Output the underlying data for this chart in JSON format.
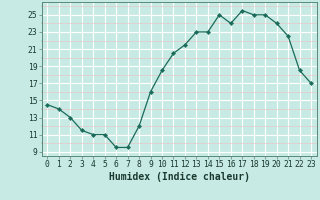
{
  "x": [
    0,
    1,
    2,
    3,
    4,
    5,
    6,
    7,
    8,
    9,
    10,
    11,
    12,
    13,
    14,
    15,
    16,
    17,
    18,
    19,
    20,
    21,
    22,
    23
  ],
  "y": [
    14.5,
    14.0,
    13.0,
    11.5,
    11.0,
    11.0,
    9.5,
    9.5,
    12.0,
    16.0,
    18.5,
    20.5,
    21.5,
    23.0,
    23.0,
    25.0,
    24.0,
    25.5,
    25.0,
    25.0,
    24.0,
    22.5,
    18.5,
    17.0
  ],
  "xlabel": "Humidex (Indice chaleur)",
  "ylim": [
    8.5,
    26.5
  ],
  "xlim": [
    -0.5,
    23.5
  ],
  "yticks": [
    9,
    11,
    13,
    15,
    17,
    19,
    21,
    23,
    25
  ],
  "xticks": [
    0,
    1,
    2,
    3,
    4,
    5,
    6,
    7,
    8,
    9,
    10,
    11,
    12,
    13,
    14,
    15,
    16,
    17,
    18,
    19,
    20,
    21,
    22,
    23
  ],
  "bg_color": "#c8eae4",
  "grid_color_major": "#ffffff",
  "grid_color_minor_y": "#e8c8c8",
  "line_color": "#1a6b5a",
  "marker_color": "#1a6b5a",
  "tick_label_fontsize": 5.8,
  "xlabel_fontsize": 7.0
}
